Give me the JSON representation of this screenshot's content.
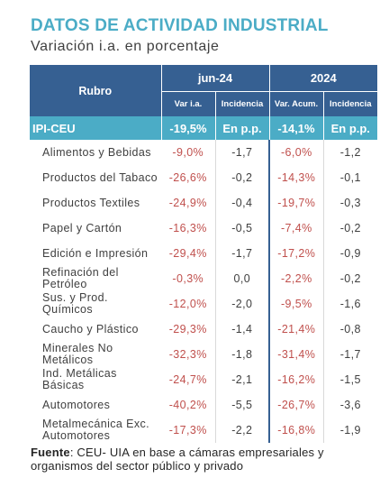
{
  "title": "DATOS DE ACTIVIDAD INDUSTRIAL",
  "subtitle": "Variación i.a. en porcentaje",
  "table": {
    "rubro_header": "Rubro",
    "period1": "jun-24",
    "period2": "2024",
    "sub_headers": [
      "Var i.a.",
      "Incidencia",
      "Var. Acum.",
      "Incidencia"
    ],
    "ipi": {
      "label": "IPI-CEU",
      "v1": "-19,5%",
      "v2": "En p.p.",
      "v3": "-14,1%",
      "v4": "En p.p."
    },
    "rows": [
      {
        "label": "Alimentos y Bebidas",
        "v1": "-9,0%",
        "v2": "-1,7",
        "v3": "-6,0%",
        "v4": "-1,2"
      },
      {
        "label": "Productos del Tabaco",
        "v1": "-26,6%",
        "v2": "-0,2",
        "v3": "-14,3%",
        "v4": "-0,1"
      },
      {
        "label": "Productos Textiles",
        "v1": "-24,9%",
        "v2": "-0,4",
        "v3": "-19,7%",
        "v4": "-0,3"
      },
      {
        "label": "Papel y Cartón",
        "v1": "-16,3%",
        "v2": "-0,5",
        "v3": "-7,4%",
        "v4": "-0,2"
      },
      {
        "label": "Edición e Impresión",
        "v1": "-29,4%",
        "v2": "-1,7",
        "v3": "-17,2%",
        "v4": "-0,9"
      },
      {
        "label": "Refinación del Petróleo",
        "v1": "-0,3%",
        "v2": "0,0",
        "v3": "-2,2%",
        "v4": "-0,2"
      },
      {
        "label": "Sus. y Prod. Químicos",
        "v1": "-12,0%",
        "v2": "-2,0",
        "v3": "-9,5%",
        "v4": "-1,6"
      },
      {
        "label": "Caucho y Plástico",
        "v1": "-29,3%",
        "v2": "-1,4",
        "v3": "-21,4%",
        "v4": "-0,8"
      },
      {
        "label": "Minerales No Metálicos",
        "v1": "-32,3%",
        "v2": "-1,8",
        "v3": "-31,4%",
        "v4": "-1,7"
      },
      {
        "label": "Ind. Metálicas Básicas",
        "v1": "-24,7%",
        "v2": "-2,1",
        "v3": "-16,2%",
        "v4": "-1,5"
      },
      {
        "label": "Automotores",
        "v1": "-40,2%",
        "v2": "-5,5",
        "v3": "-26,7%",
        "v4": "-3,6"
      },
      {
        "label": "Metalmecánica Exc. Automotores",
        "v1": "-17,3%",
        "v2": "-2,2",
        "v3": "-16,8%",
        "v4": "-1,9"
      }
    ]
  },
  "footer": {
    "label": "Fuente",
    "text": ": CEU- UIA en base a cámaras empresariales y organismos del sector público y privado"
  },
  "colors": {
    "accent": "#4bacc6",
    "header": "#366092",
    "negative": "#c0504d"
  }
}
